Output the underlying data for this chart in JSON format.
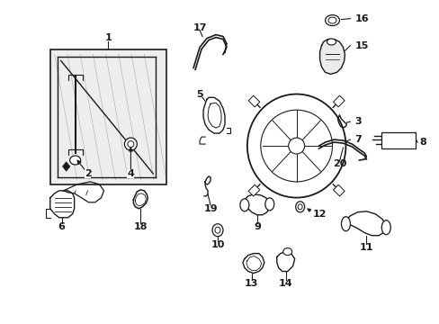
{
  "bg_color": "#ffffff",
  "line_color": "#1a1a1a",
  "fig_width": 4.89,
  "fig_height": 3.6,
  "dpi": 100,
  "font_size": 8,
  "font_size_small": 7
}
